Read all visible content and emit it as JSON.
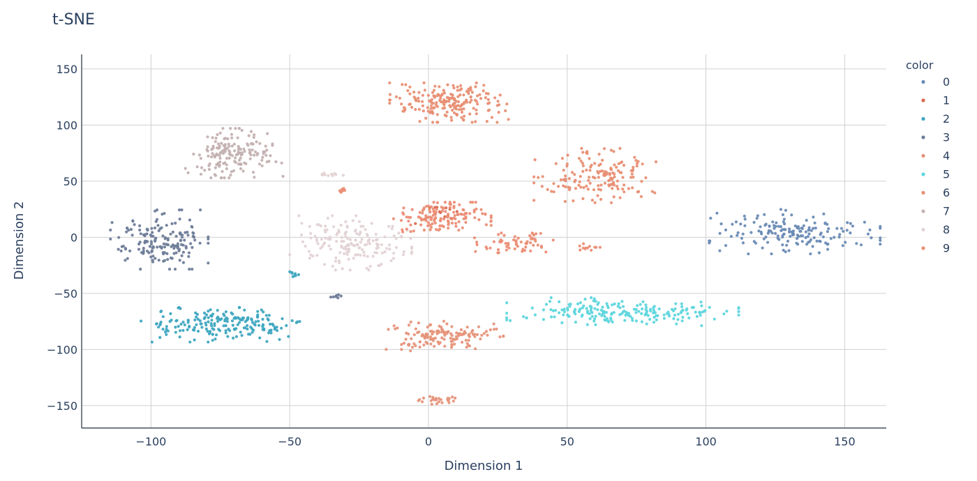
{
  "chart_data": {
    "type": "scatter",
    "title": "t-SNE",
    "xlabel": "Dimension 1",
    "ylabel": "Dimension 2",
    "xlim": [
      -125,
      165
    ],
    "ylim": [
      -170,
      163
    ],
    "x_ticks": [
      -100,
      -50,
      0,
      50,
      100,
      150
    ],
    "y_ticks": [
      -150,
      -100,
      -50,
      0,
      50,
      100,
      150
    ],
    "x_tick_labels": [
      "−100",
      "−50",
      "0",
      "50",
      "100",
      "150"
    ],
    "y_tick_labels": [
      "−150",
      "−100",
      "−50",
      "0",
      "50",
      "100",
      "150"
    ],
    "grid": true,
    "legend_title": "color",
    "legend_position": "right",
    "series": [
      {
        "name": "0",
        "color": "#6a8bb5",
        "clusters": [
          {
            "center": [
              132,
              5
            ],
            "spread": [
              14,
              9
            ],
            "count": 170
          }
        ]
      },
      {
        "name": "1",
        "color": "#d9694f",
        "clusters": [
          {
            "center": [
              5,
              20
            ],
            "spread": [
              5,
              5
            ],
            "count": 12
          }
        ]
      },
      {
        "name": "2",
        "color": "#3fa7c0",
        "clusters": [
          {
            "center": [
              -75,
              -78
            ],
            "spread": [
              13,
              7
            ],
            "count": 200
          },
          {
            "center": [
              -49,
              -33
            ],
            "spread": [
              1,
              1
            ],
            "count": 8
          }
        ]
      },
      {
        "name": "3",
        "color": "#6f7d99",
        "clusters": [
          {
            "center": [
              -97,
              -2
            ],
            "spread": [
              8,
              12
            ],
            "count": 170
          },
          {
            "center": [
              -33,
              -51
            ],
            "spread": [
              1,
              1.5
            ],
            "count": 8
          }
        ]
      },
      {
        "name": "4",
        "color": "#e6937a",
        "clusters": [
          {
            "center": [
              5,
              -88
            ],
            "spread": [
              10,
              6
            ],
            "count": 140
          },
          {
            "center": [
              3,
              -145
            ],
            "spread": [
              3,
              2
            ],
            "count": 25
          }
        ]
      },
      {
        "name": "5",
        "color": "#5fd6dd",
        "clusters": [
          {
            "center": [
              70,
              -67
            ],
            "spread": [
              19,
              6
            ],
            "count": 200
          }
        ]
      },
      {
        "name": "6",
        "color": "#e88f74",
        "clusters": [
          {
            "center": [
              8,
              120
            ],
            "spread": [
              10,
              8
            ],
            "count": 200
          },
          {
            "center": [
              60,
              55
            ],
            "spread": [
              10,
              11
            ],
            "count": 160
          }
        ]
      },
      {
        "name": "7",
        "color": "#c4b1b1",
        "clusters": [
          {
            "center": [
              -70,
              75
            ],
            "spread": [
              8,
              10
            ],
            "count": 170
          }
        ]
      },
      {
        "name": "8",
        "color": "#e3d3d5",
        "clusters": [
          {
            "center": [
              -28,
              -5
            ],
            "spread": [
              10,
              11
            ],
            "count": 170
          },
          {
            "center": [
              -35,
              56
            ],
            "spread": [
              2,
              0.8
            ],
            "count": 10
          }
        ]
      },
      {
        "name": "9",
        "color": "#eb8e76",
        "clusters": [
          {
            "center": [
              5,
              18
            ],
            "spread": [
              8,
              6
            ],
            "count": 140
          },
          {
            "center": [
              32,
              -5
            ],
            "spread": [
              7,
              4
            ],
            "count": 60
          },
          {
            "center": [
              -31,
              42
            ],
            "spread": [
              1.5,
              1
            ],
            "count": 8
          },
          {
            "center": [
              56,
              -10
            ],
            "spread": [
              3,
              2
            ],
            "count": 12
          }
        ]
      }
    ]
  }
}
